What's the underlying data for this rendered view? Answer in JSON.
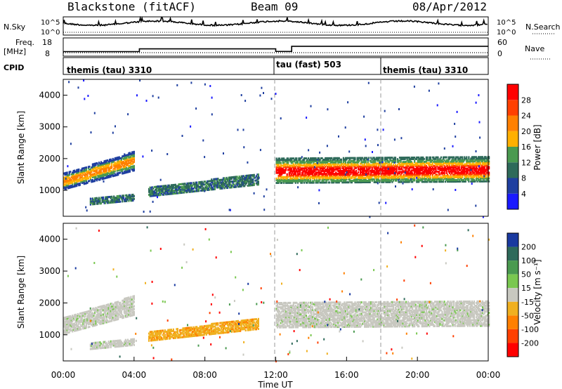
{
  "header": {
    "station": "Blackstone (fitACF)",
    "beam": "Beam 09",
    "date": "08/Apr/2012"
  },
  "noise_panel": {
    "left_label": "N.Sky",
    "right_label": "N.Search",
    "tick_hi": "10^5",
    "tick_lo": "10^0"
  },
  "freq_panel": {
    "left_label": "Freq.",
    "left_unit": "[MHz]",
    "left_tick_hi": "18",
    "left_tick_lo": "8",
    "right_label": "Nave",
    "right_tick_hi": "60",
    "right_tick_lo": "0"
  },
  "cpid_panel": {
    "label": "CPID",
    "segments": [
      {
        "name": "themis (tau) 3310"
      },
      {
        "name": "tau (fast) 503"
      },
      {
        "name": "themis (tau) 3310"
      }
    ]
  },
  "power_panel": {
    "ylabel": "Slant Range [km]",
    "yticks": [
      "1000",
      "2000",
      "3000",
      "4000"
    ],
    "colorbar_label": "Power [dB]",
    "colorbar_ticks": [
      "4",
      "8",
      "12",
      "16",
      "20",
      "24",
      "28"
    ],
    "colors": [
      "#1a1aff",
      "#1f3fa0",
      "#2e6a5a",
      "#4a9a50",
      "#ffb000",
      "#ff8000",
      "#ff4000",
      "#ff0000"
    ]
  },
  "velocity_panel": {
    "ylabel": "Slant Range [km]",
    "yticks": [
      "1000",
      "2000",
      "3000",
      "4000"
    ],
    "colorbar_label": "Velocity [m s⁻¹]",
    "colorbar_ticks": [
      "200",
      "100",
      "50",
      "15",
      "-15",
      "-50",
      "-100",
      "-200"
    ],
    "colors": [
      "#1a3aa0",
      "#2e6a5a",
      "#4a9a50",
      "#7ac850",
      "#c8c8c0",
      "#f0b020",
      "#ff8000",
      "#ff4000",
      "#ff0000"
    ]
  },
  "time_axis": {
    "label": "Time UT",
    "ticks": [
      "00:00",
      "04:00",
      "08:00",
      "12:00",
      "16:00",
      "20:00",
      "00:00"
    ]
  },
  "chart_data": {
    "type": "heatmap",
    "title": "Blackstone (fitACF) Beam 09 08/Apr/2012",
    "xlabel": "Time UT",
    "ylabel": "Slant Range [km]",
    "xlim_hours": [
      0,
      24
    ],
    "ylim_km": [
      180,
      4500
    ],
    "frequency_segments": [
      {
        "start_h": 0.0,
        "end_h": 4.3,
        "freq_mhz": 10.5
      },
      {
        "start_h": 4.3,
        "end_h": 12.0,
        "freq_mhz": 12.0
      },
      {
        "start_h": 12.0,
        "end_h": 12.9,
        "freq_mhz": 10.6
      },
      {
        "start_h": 12.9,
        "end_h": 24.0,
        "freq_mhz": 13.4
      }
    ],
    "cpid_segments": [
      {
        "start_h": 0.0,
        "end_h": 12.0,
        "cpid": "themis (tau) 3310"
      },
      {
        "start_h": 12.0,
        "end_h": 18.0,
        "cpid": "tau (fast) 503"
      },
      {
        "start_h": 18.0,
        "end_h": 24.0,
        "cpid": "themis (tau) 3310"
      }
    ],
    "backscatter_regions": [
      {
        "name": "early-band",
        "x0": 0.0,
        "x1": 4.0,
        "r0_start": 1000,
        "r1_start": 1500,
        "r0_end": 1600,
        "r1_end": 2200,
        "power": "green-orange",
        "velocity": "grey"
      },
      {
        "name": "low-band",
        "x0": 1.5,
        "x1": 4.0,
        "r0_start": 520,
        "r1_start": 720,
        "r0_end": 650,
        "r1_end": 850,
        "power": "blue-green",
        "velocity": "grey"
      },
      {
        "name": "mid-band",
        "x0": 4.8,
        "x1": 11.0,
        "r0_start": 780,
        "r1_start": 1050,
        "r0_end": 1150,
        "r1_end": 1500,
        "power": "blue-green",
        "velocity": "orange"
      },
      {
        "name": "main-band",
        "x0": 12.0,
        "x1": 24.0,
        "r0_start": 1200,
        "r1_start": 2000,
        "r0_end": 1250,
        "r1_end": 2050,
        "power": "red-orange",
        "velocity": "grey"
      }
    ]
  }
}
